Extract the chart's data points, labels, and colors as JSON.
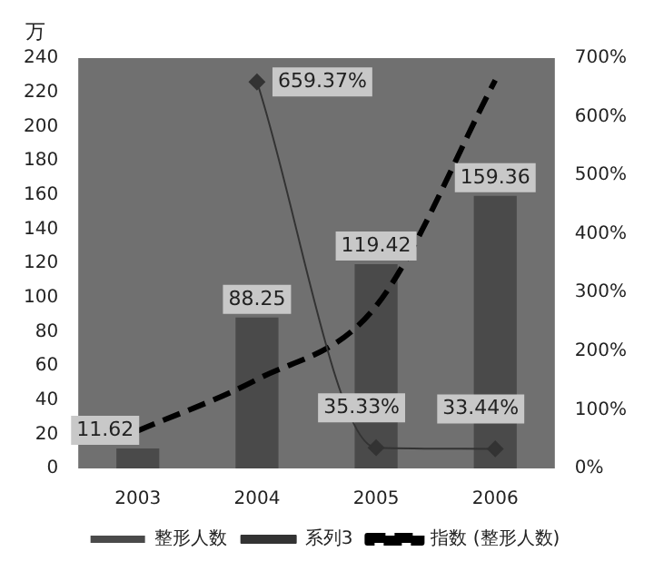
{
  "chart_data": {
    "type": "bar",
    "ylabel": "万",
    "categories": [
      "2003",
      "2004",
      "2005",
      "2006"
    ],
    "series": [
      {
        "name": "整形人数",
        "color": "#4a4a4a",
        "values": [
          11.62,
          88.25,
          119.42,
          159.36
        ],
        "value_labels": [
          "11.62",
          "88.25",
          "119.42",
          "159.36"
        ]
      },
      {
        "name": "系列3",
        "type": "line",
        "axis": "y2",
        "color": "#333333",
        "marker": "diamond",
        "values": [
          null,
          659.37,
          35.33,
          33.44
        ],
        "value_labels": [
          null,
          "659.37%",
          "35.33%",
          "33.44%"
        ]
      },
      {
        "name": "指数 (整形人数)",
        "type": "line",
        "color": "#000000",
        "line_style": "dashed",
        "marker": "none",
        "values": [
          22,
          52,
          95,
          227
        ]
      }
    ],
    "ylim": [
      0,
      240
    ],
    "yticks": [
      0,
      20,
      40,
      60,
      80,
      100,
      120,
      140,
      160,
      180,
      200,
      220,
      240
    ],
    "y2lim": [
      0,
      700
    ],
    "y2ticks": [
      {
        "value": 0,
        "label": "0%"
      },
      {
        "value": 100,
        "label": "100%"
      },
      {
        "value": 200,
        "label": "200%"
      },
      {
        "value": 300,
        "label": "300%"
      },
      {
        "value": 400,
        "label": "400%"
      },
      {
        "value": 500,
        "label": "500%"
      },
      {
        "value": 600,
        "label": "600%"
      },
      {
        "value": 700,
        "label": "700%"
      }
    ],
    "grid": false,
    "legend": "bottom"
  }
}
